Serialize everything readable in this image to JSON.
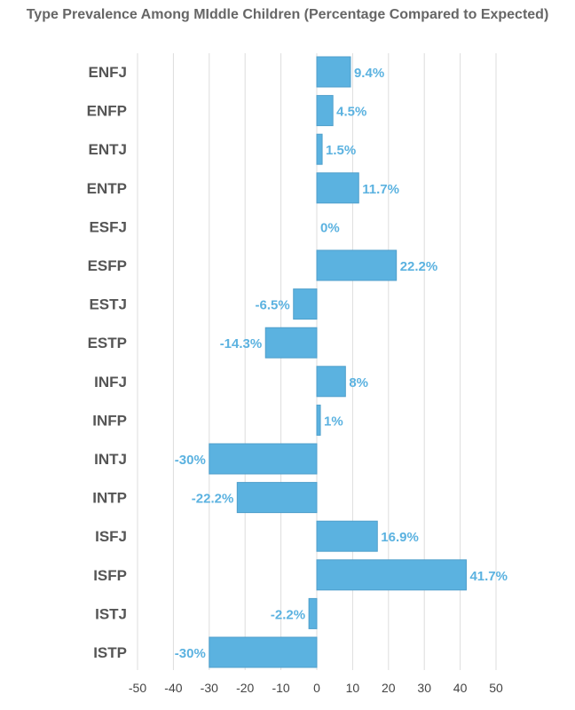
{
  "chart_data": {
    "type": "bar",
    "orientation": "horizontal",
    "title": "Type Prevalence Among MIddle Children (Percentage Compared to Expected)",
    "xlabel": "",
    "ylabel": "",
    "categories": [
      "ENFJ",
      "ENFP",
      "ENTJ",
      "ENTP",
      "ESFJ",
      "ESFP",
      "ESTJ",
      "ESTP",
      "INFJ",
      "INFP",
      "INTJ",
      "INTP",
      "ISFJ",
      "ISFP",
      "ISTJ",
      "ISTP"
    ],
    "values": [
      9.4,
      4.5,
      1.5,
      11.7,
      0,
      22.2,
      -6.5,
      -14.3,
      8,
      1,
      -30,
      -22.2,
      16.9,
      41.7,
      -2.2,
      -30
    ],
    "data_labels": [
      "9.4%",
      "4.5%",
      "1.5%",
      "11.7%",
      "0%",
      "22.2%",
      "-6.5%",
      "-14.3%",
      "8%",
      "1%",
      "-30%",
      "-22.2%",
      "16.9%",
      "41.7%",
      "-2.2%",
      "-30%"
    ],
    "xlim": [
      -50,
      50
    ],
    "xticks": [
      -50,
      -40,
      -30,
      -20,
      -10,
      0,
      10,
      20,
      30,
      40,
      50
    ],
    "xtick_labels": [
      "-50",
      "-40",
      "-30",
      "-20",
      "-10",
      "0",
      "10",
      "20",
      "30",
      "40",
      "50"
    ],
    "grid": true,
    "legend": "none",
    "colors": {
      "bar_fill": "#5bb2e0",
      "bar_stroke": "#4f9fcb",
      "label": "#5bb2e0",
      "grid": "#dddddd",
      "category_text": "#555555"
    }
  }
}
